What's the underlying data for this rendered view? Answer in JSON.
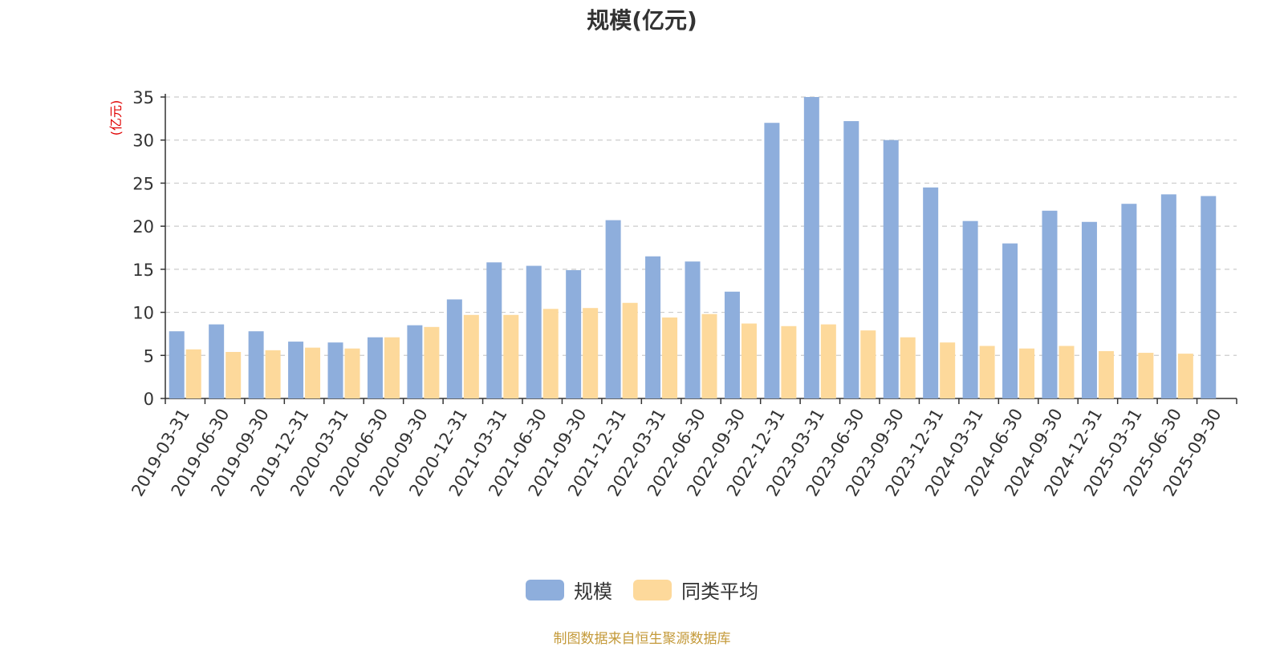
{
  "colors": {
    "scale": "#8eaedc",
    "average": "#fdd99b",
    "unit_label": "#e00000",
    "grid": "#cccccc",
    "axis": "#333333",
    "source": "#c49a3a"
  },
  "source_note": "制图数据来自恒生聚源数据库",
  "chart_data": {
    "type": "bar",
    "title": "规模(亿元)",
    "ylabel": "(亿元)",
    "ylim": [
      0,
      35
    ],
    "yticks": [
      0,
      5,
      10,
      15,
      20,
      25,
      30,
      35
    ],
    "grid": true,
    "legend_position": "bottom-center",
    "categories": [
      "2019-03-31",
      "2019-06-30",
      "2019-09-30",
      "2019-12-31",
      "2020-03-31",
      "2020-06-30",
      "2020-09-30",
      "2020-12-31",
      "2021-03-31",
      "2021-06-30",
      "2021-09-30",
      "2021-12-31",
      "2022-03-31",
      "2022-06-30",
      "2022-09-30",
      "2022-12-31",
      "2023-03-31",
      "2023-06-30",
      "2023-09-30",
      "2023-12-31",
      "2024-03-31",
      "2024-06-30",
      "2024-09-30",
      "2024-12-31",
      "2025-03-31",
      "2025-06-30",
      "2025-09-30"
    ],
    "series": [
      {
        "name": "规模",
        "values": [
          7.8,
          8.6,
          7.8,
          6.6,
          6.5,
          7.1,
          8.5,
          11.5,
          15.8,
          15.4,
          14.9,
          20.7,
          16.5,
          15.9,
          12.4,
          32.0,
          35.0,
          32.2,
          30.0,
          24.5,
          20.6,
          18.0,
          21.8,
          20.5,
          22.6,
          23.7,
          23.5
        ]
      },
      {
        "name": "同类平均",
        "values": [
          5.7,
          5.4,
          5.6,
          5.9,
          5.8,
          7.1,
          8.3,
          9.7,
          9.7,
          10.4,
          10.5,
          11.1,
          9.4,
          9.8,
          8.7,
          8.4,
          8.6,
          7.9,
          7.1,
          6.5,
          6.1,
          5.8,
          6.1,
          5.5,
          5.3,
          5.2,
          null
        ]
      }
    ]
  }
}
